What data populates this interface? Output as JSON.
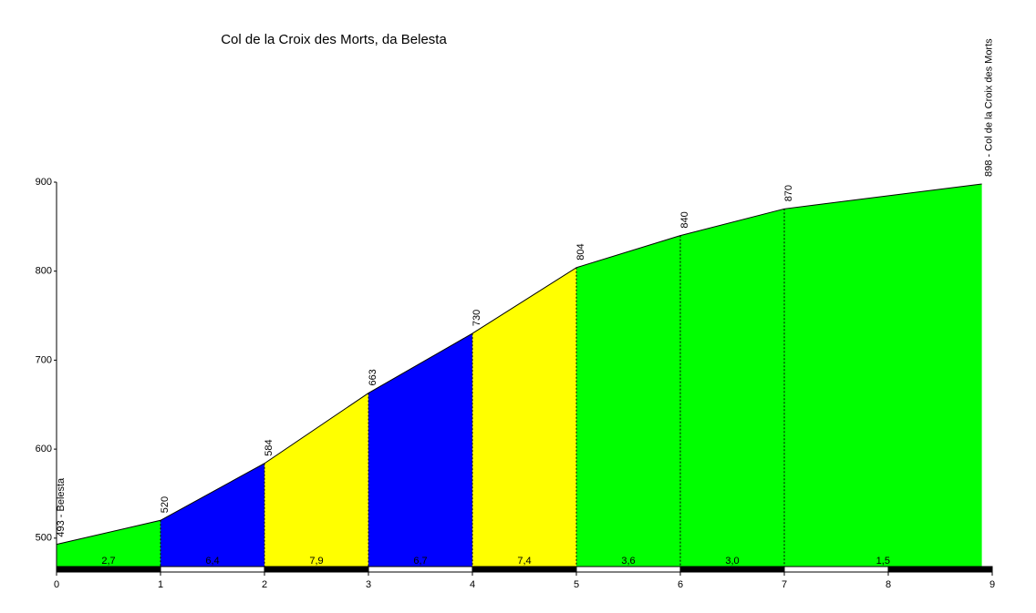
{
  "chart_data": {
    "type": "climb-profile",
    "title": "Col de la Croix des Morts, da Belesta",
    "x": [
      0,
      1,
      2,
      3,
      4,
      5,
      6,
      7,
      8.9
    ],
    "elevations": [
      493,
      520,
      584,
      663,
      730,
      804,
      840,
      870,
      898
    ],
    "elevation_labels": [
      "493 - Belesta",
      "520",
      "584",
      "663",
      "730",
      "804",
      "840",
      "870",
      "898 - Col de la Croix des Morts"
    ],
    "gradients": [
      "2,7",
      "6,4",
      "7,9",
      "6,7",
      "7,4",
      "3,6",
      "3,0",
      "1,5"
    ],
    "segment_colors": [
      "#00ff00",
      "#0000ff",
      "#ffff00",
      "#0000ff",
      "#ffff00",
      "#00ff00",
      "#00ff00",
      "#00ff00"
    ],
    "xlim": [
      0,
      9
    ],
    "xticks": [
      0,
      1,
      2,
      3,
      4,
      5,
      6,
      7,
      8,
      9
    ],
    "ylim": [
      465,
      900
    ],
    "yticks": [
      500,
      600,
      700,
      800,
      900
    ]
  }
}
